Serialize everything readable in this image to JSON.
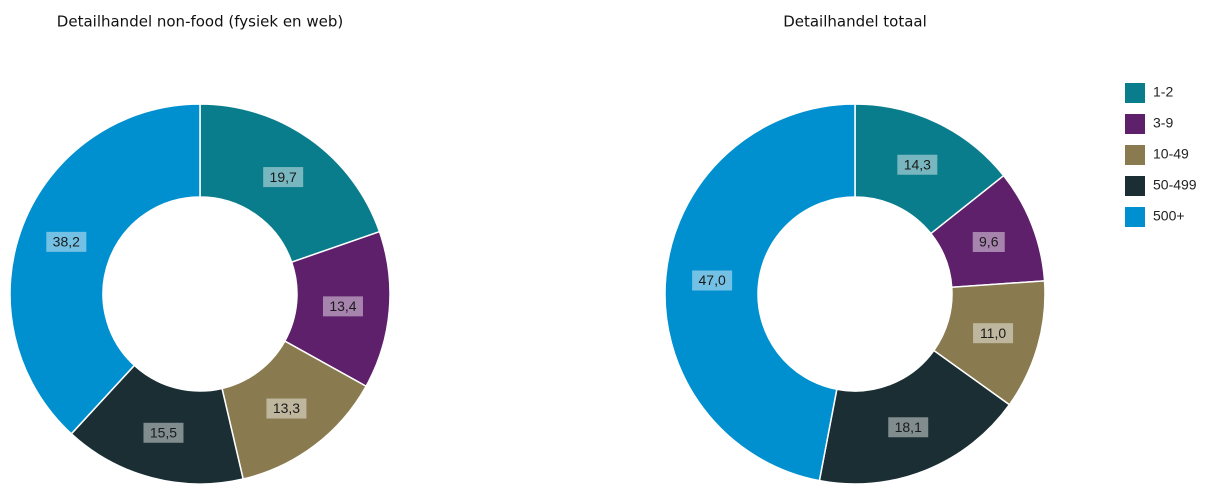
{
  "chart_data": [
    {
      "type": "donut",
      "title": "Detailhandel non-food (fysiek en web)",
      "values": [
        19.7,
        13.4,
        13.3,
        15.5,
        38.2
      ],
      "value_labels": [
        "19,7",
        "13,4",
        "13,3",
        "15,5",
        "38,2"
      ],
      "colors": [
        "#0a7d8c",
        "#5e1f6b",
        "#8a7a4f",
        "#1a2e33",
        "#0090d0"
      ]
    },
    {
      "type": "donut",
      "title": "Detailhandel totaal",
      "categories": [
        "1-2",
        "3-9",
        "10-49",
        "50-499",
        "500+"
      ],
      "values": [
        14.3,
        9.6,
        11.0,
        18.1,
        47.0
      ],
      "value_labels": [
        "14,3",
        "9,6",
        "11,0",
        "18,1",
        "47,0"
      ],
      "colors": [
        "#0a7d8c",
        "#5e1f6b",
        "#8a7a4f",
        "#1a2e33",
        "#0090d0"
      ],
      "legend": "right"
    }
  ]
}
